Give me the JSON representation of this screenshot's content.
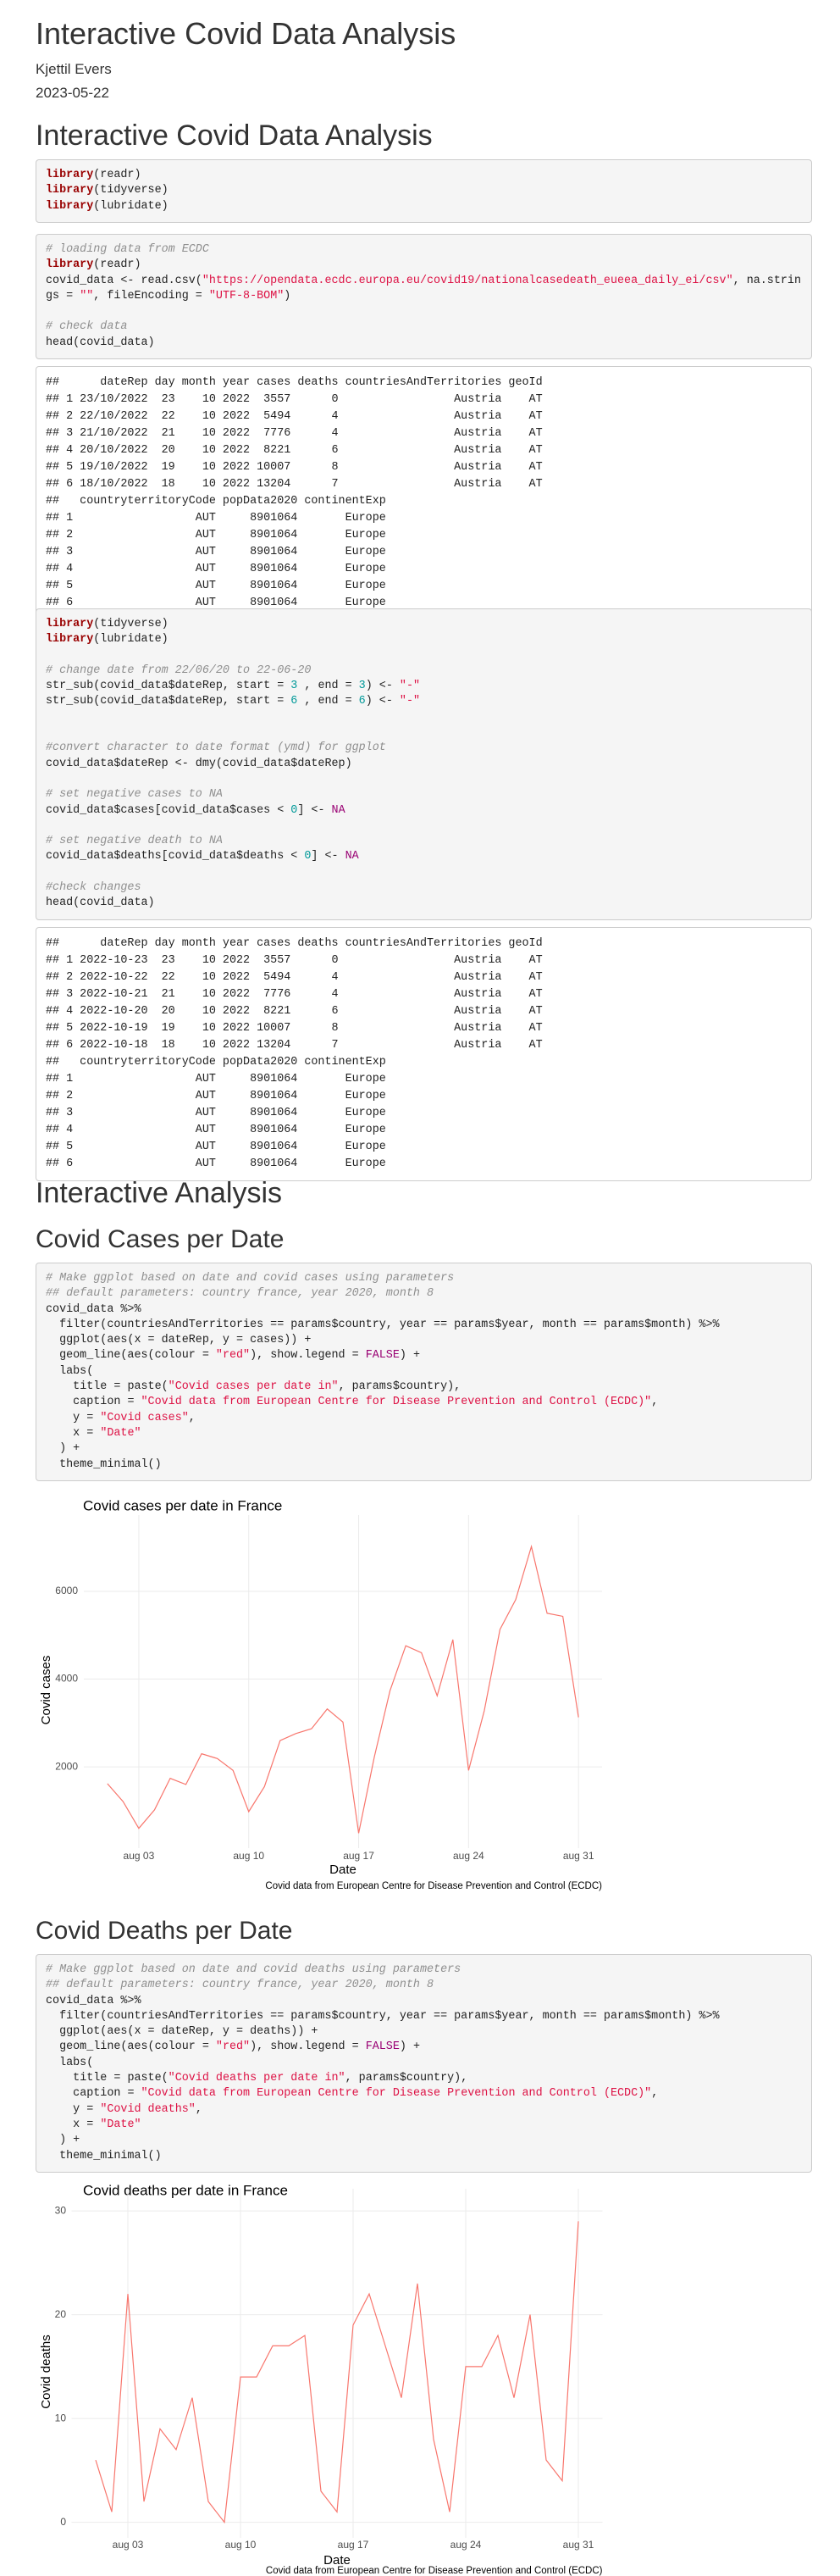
{
  "title": "Interactive Covid Data Analysis",
  "author": "Kjettil Evers",
  "date": "2023-05-22",
  "headings": [
    "Interactive Covid Data Analysis",
    "Interactive Analysis",
    "Covid Cases per Date",
    "Covid Deaths per Date"
  ],
  "code_blocks": [
    "library(readr)\nlibrary(tidyverse)\nlibrary(lubridate)",
    "# loading data from ECDC\nlibrary(readr)\ncovid_data <- read.csv(\"https://opendata.ecdc.europa.eu/covid19/nationalcasedeath_eueea_daily_ei/csv\", na.strings = \"\", fileEncoding = \"UTF-8-BOM\")\n\n# check data\nhead(covid_data)",
    "library(tidyverse)\nlibrary(lubridate)\n\n# change date from 22/06/20 to 22-06-20\nstr_sub(covid_data$dateRep, start = 3 , end = 3) <- \"-\"\nstr_sub(covid_data$dateRep, start = 6 , end = 6) <- \"-\"\n\n\n#convert character to date format (ymd) for ggplot\ncovid_data$dateRep <- dmy(covid_data$dateRep)\n\n# set negative cases to NA\ncovid_data$cases[covid_data$cases < 0] <- NA\n\n# set negative death to NA\ncovid_data$deaths[covid_data$deaths < 0] <- NA\n\n#check changes\nhead(covid_data)",
    "# Make ggplot based on date and covid cases using parameters\n## default parameters: country france, year 2020, month 8\ncovid_data %>%\n  filter(countriesAndTerritories == params$country, year == params$year, month == params$month) %>%\n  ggplot(aes(x = dateRep, y = cases)) +\n  geom_line(aes(colour = \"red\"), show.legend = FALSE) +\n  labs(\n    title = paste(\"Covid cases per date in\", params$country),\n    caption = \"Covid data from European Centre for Disease Prevention and Control (ECDC)\",\n    y = \"Covid cases\",\n    x = \"Date\"\n  ) +\n  theme_minimal()",
    "# Make ggplot based on date and covid deaths using parameters\n## default parameters: country france, year 2020, month 8\ncovid_data %>%\n  filter(countriesAndTerritories == params$country, year == params$year, month == params$month) %>%\n  ggplot(aes(x = dateRep, y = deaths)) +\n  geom_line(aes(colour = \"red\"), show.legend = FALSE) +\n  labs(\n    title = paste(\"Covid deaths per date in\", params$country),\n    caption = \"Covid data from European Centre for Disease Prevention and Control (ECDC)\",\n    y = \"Covid deaths\",\n    x = \"Date\"\n  ) +\n  theme_minimal()"
  ],
  "outputs": [
    "##      dateRep day month year cases deaths countriesAndTerritories geoId\n## 1 23/10/2022  23    10 2022  3557      0                 Austria    AT\n## 2 22/10/2022  22    10 2022  5494      4                 Austria    AT\n## 3 21/10/2022  21    10 2022  7776      4                 Austria    AT\n## 4 20/10/2022  20    10 2022  8221      6                 Austria    AT\n## 5 19/10/2022  19    10 2022 10007      8                 Austria    AT\n## 6 18/10/2022  18    10 2022 13204      7                 Austria    AT\n##   countryterritoryCode popData2020 continentExp\n## 1                  AUT     8901064       Europe\n## 2                  AUT     8901064       Europe\n## 3                  AUT     8901064       Europe\n## 4                  AUT     8901064       Europe\n## 5                  AUT     8901064       Europe\n## 6                  AUT     8901064       Europe",
    "##      dateRep day month year cases deaths countriesAndTerritories geoId\n## 1 2022-10-23  23    10 2022  3557      0                 Austria    AT\n## 2 2022-10-22  22    10 2022  5494      4                 Austria    AT\n## 3 2022-10-21  21    10 2022  7776      4                 Austria    AT\n## 4 2022-10-20  20    10 2022  8221      6                 Austria    AT\n## 5 2022-10-19  19    10 2022 10007      8                 Austria    AT\n## 6 2022-10-18  18    10 2022 13204      7                 Austria    AT\n##   countryterritoryCode popData2020 continentExp\n## 1                  AUT     8901064       Europe\n## 2                  AUT     8901064       Europe\n## 3                  AUT     8901064       Europe\n## 4                  AUT     8901064       Europe\n## 5                  AUT     8901064       Europe\n## 6                  AUT     8901064       Europe"
  ],
  "chart_data": [
    {
      "type": "line",
      "title": "Covid cases per date in France",
      "caption": "Covid data from European Centre for Disease Prevention and Control (ECDC)",
      "ylabel": "Covid cases",
      "xlabel": "Date",
      "color": "#f8766d",
      "grid": true,
      "x": [
        1,
        2,
        3,
        4,
        5,
        6,
        7,
        8,
        9,
        10,
        11,
        12,
        13,
        14,
        15,
        16,
        17,
        18,
        19,
        20,
        21,
        22,
        23,
        24,
        25,
        26,
        27,
        28,
        29,
        30,
        31
      ],
      "values": [
        1620,
        1210,
        600,
        1020,
        1740,
        1600,
        2300,
        2190,
        1920,
        980,
        1550,
        2600,
        2760,
        2870,
        3320,
        3020,
        490,
        2230,
        3740,
        4760,
        4600,
        3620,
        4900,
        1920,
        3280,
        5130,
        5810,
        7020,
        5500,
        5430,
        3130
      ],
      "xlim": [
        -0.5,
        32.5
      ],
      "xticks": [
        {
          "value": 3,
          "label": "aug 03"
        },
        {
          "value": 10,
          "label": "aug 10"
        },
        {
          "value": 17,
          "label": "aug 17"
        },
        {
          "value": 24,
          "label": "aug 24"
        },
        {
          "value": 31,
          "label": "aug 31"
        }
      ],
      "ylim": [
        150,
        7350
      ],
      "yticks": [
        2000,
        4000,
        6000
      ]
    },
    {
      "type": "line",
      "title": "Covid deaths per date in France",
      "caption": "Covid data from European Centre for Disease Prevention and Control (ECDC)",
      "ylabel": "Covid deaths",
      "xlabel": "Date",
      "color": "#f8766d",
      "grid": true,
      "x": [
        1,
        2,
        3,
        4,
        5,
        6,
        7,
        8,
        9,
        10,
        11,
        12,
        13,
        14,
        15,
        16,
        17,
        18,
        19,
        20,
        21,
        22,
        23,
        24,
        25,
        26,
        27,
        28,
        29,
        30,
        31
      ],
      "values": [
        6,
        1,
        22,
        2,
        9,
        7,
        12,
        2,
        0,
        14,
        14,
        17,
        17,
        18,
        3,
        1,
        19,
        22,
        17,
        12,
        23,
        8,
        1,
        15,
        15,
        18,
        12,
        20,
        6,
        4,
        29
      ],
      "xlim": [
        -0.5,
        32.5
      ],
      "xticks": [
        {
          "value": 3,
          "label": "aug 03"
        },
        {
          "value": 10,
          "label": "aug 10"
        },
        {
          "value": 17,
          "label": "aug 17"
        },
        {
          "value": 24,
          "label": "aug 24"
        },
        {
          "value": 31,
          "label": "aug 31"
        }
      ],
      "ylim": [
        -1.5,
        30.5
      ],
      "yticks": [
        0,
        10,
        20,
        30
      ]
    }
  ]
}
